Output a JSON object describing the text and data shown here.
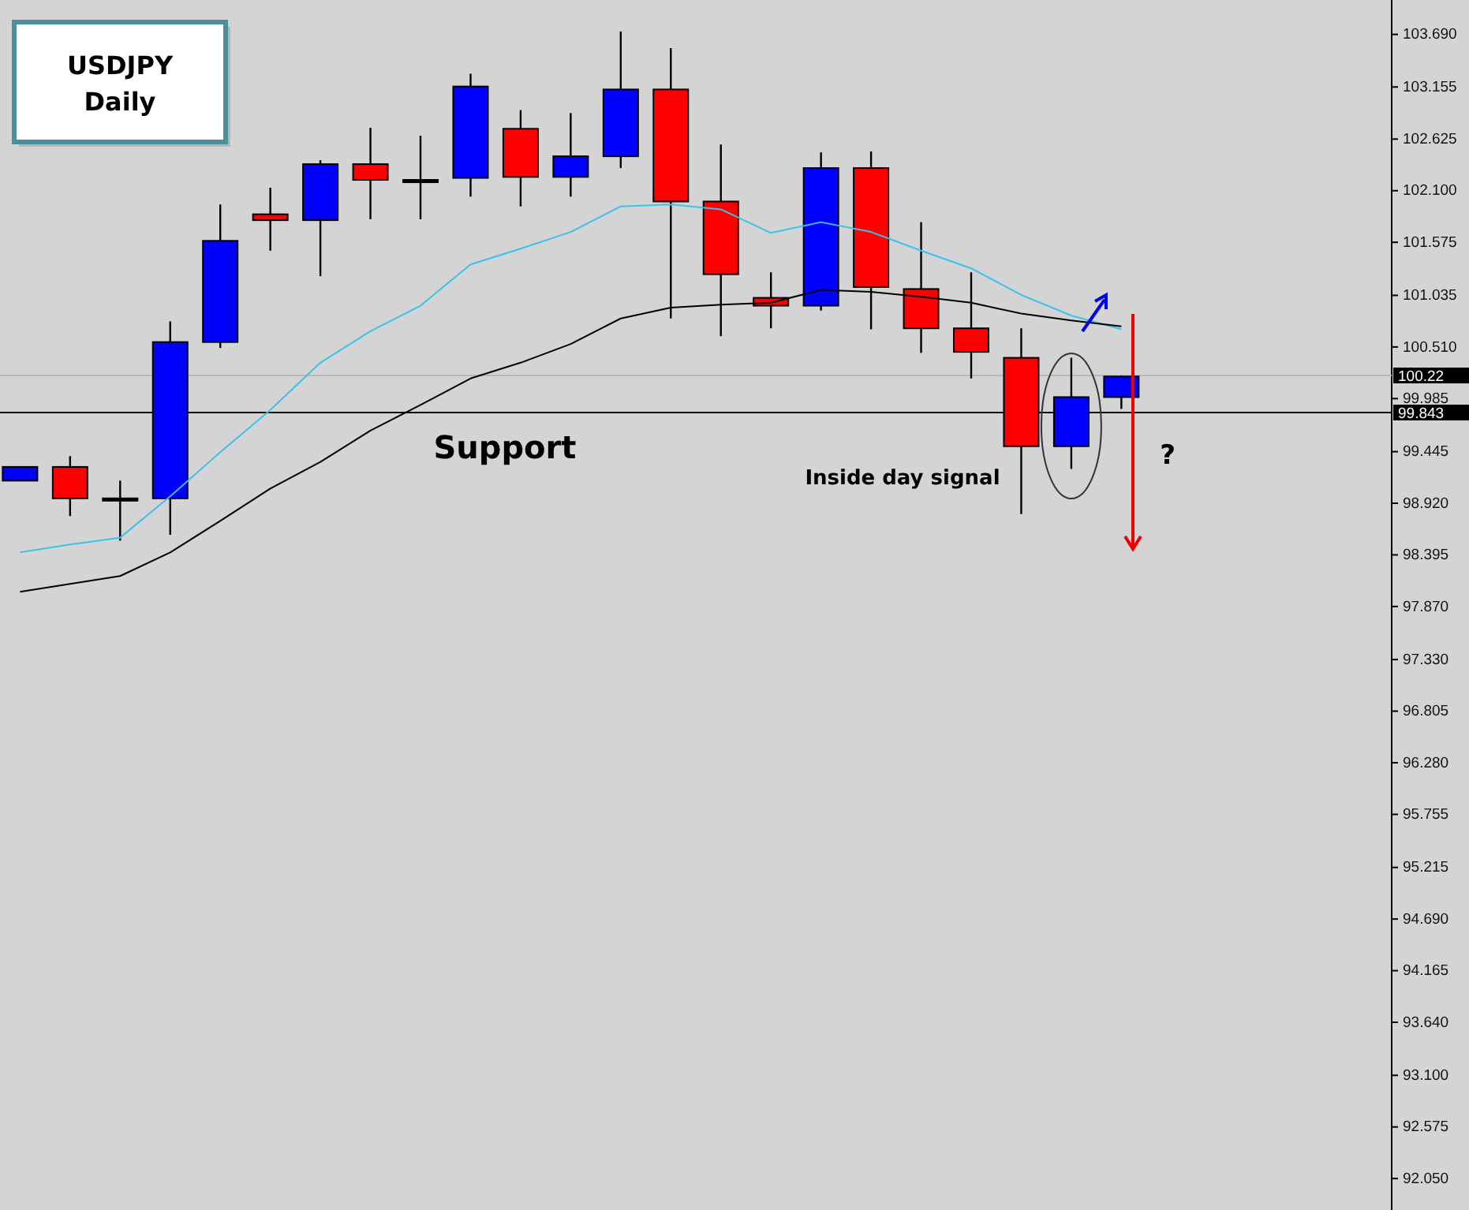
{
  "chart_data": {
    "type": "candlestick",
    "title": "USDJPY",
    "subtitle": "Daily",
    "categories": [
      null,
      null,
      null,
      null,
      null,
      null,
      null,
      null,
      null,
      null,
      null,
      null,
      null,
      null,
      null,
      null,
      null,
      null,
      null,
      null,
      null,
      null,
      null
    ],
    "ohlc": [
      [
        99.15,
        99.29,
        99.15,
        99.29
      ],
      [
        99.29,
        99.4,
        98.79,
        98.97
      ],
      [
        98.97,
        99.15,
        98.54,
        98.97
      ],
      [
        98.97,
        100.77,
        98.6,
        100.56
      ],
      [
        100.56,
        101.96,
        100.5,
        101.59
      ],
      [
        101.86,
        102.13,
        101.49,
        101.8
      ],
      [
        101.8,
        102.41,
        101.23,
        102.37
      ],
      [
        102.37,
        102.74,
        101.81,
        102.21
      ],
      [
        102.21,
        102.66,
        101.81,
        102.21
      ],
      [
        102.23,
        103.29,
        102.04,
        103.16
      ],
      [
        102.73,
        102.92,
        101.94,
        102.24
      ],
      [
        102.24,
        102.89,
        102.04,
        102.45
      ],
      [
        102.45,
        103.72,
        102.33,
        103.13
      ],
      [
        103.13,
        103.55,
        100.8,
        101.99
      ],
      [
        101.99,
        102.57,
        100.62,
        101.25
      ],
      [
        101.01,
        101.27,
        100.7,
        100.93
      ],
      [
        100.93,
        102.49,
        100.88,
        102.33
      ],
      [
        102.33,
        102.5,
        100.69,
        101.12
      ],
      [
        101.1,
        101.78,
        100.45,
        100.7
      ],
      [
        100.7,
        101.27,
        100.19,
        100.46
      ],
      [
        100.4,
        100.7,
        98.81,
        99.5
      ],
      [
        99.5,
        100.4,
        99.27,
        100.0
      ],
      [
        100.0,
        100.22,
        99.88,
        100.21
      ]
    ],
    "colors": [
      "#0000ff",
      "#ff0000",
      "#000000",
      "#0000ff",
      "#0000ff",
      "#ff0000",
      "#0000ff",
      "#ff0000",
      "#000000",
      "#0000ff",
      "#ff0000",
      "#0000ff",
      "#0000ff",
      "#ff0000",
      "#ff0000",
      "#ff0000",
      "#0000ff",
      "#ff0000",
      "#ff0000",
      "#ff0000",
      "#ff0000",
      "#0000ff",
      "#0000ff"
    ],
    "series": [
      {
        "type": "line",
        "color": "#3cc0ee",
        "values": [
          98.42,
          98.5,
          98.57,
          98.99,
          99.44,
          99.87,
          100.35,
          100.67,
          100.93,
          101.35,
          101.51,
          101.68,
          101.94,
          101.96,
          101.91,
          101.67,
          101.78,
          101.68,
          101.49,
          101.31,
          101.04,
          100.83,
          100.69
        ]
      },
      {
        "type": "line",
        "color": "#000000",
        "values": [
          98.02,
          98.1,
          98.18,
          98.42,
          98.74,
          99.07,
          99.34,
          99.66,
          99.92,
          100.19,
          100.35,
          100.54,
          100.8,
          100.91,
          100.94,
          100.96,
          101.09,
          101.07,
          101.02,
          100.96,
          100.85,
          100.78,
          100.72
        ]
      }
    ],
    "ylim": [
      91.73,
      104.04
    ],
    "yticks": [
      {
        "value": 103.69,
        "label": "103.690"
      },
      {
        "value": 103.155,
        "label": "103.155"
      },
      {
        "value": 102.625,
        "label": "102.625"
      },
      {
        "value": 102.1,
        "label": "102.100"
      },
      {
        "value": 101.575,
        "label": "101.575"
      },
      {
        "value": 101.035,
        "label": "101.035"
      },
      {
        "value": 100.51,
        "label": "100.510"
      },
      {
        "value": 99.985,
        "label": "99.985"
      },
      {
        "value": 99.445,
        "label": "99.445"
      },
      {
        "value": 98.92,
        "label": "98.920"
      },
      {
        "value": 98.395,
        "label": "98.395"
      },
      {
        "value": 97.87,
        "label": "97.870"
      },
      {
        "value": 97.33,
        "label": "97.330"
      },
      {
        "value": 96.805,
        "label": "96.805"
      },
      {
        "value": 96.28,
        "label": "96.280"
      },
      {
        "value": 95.755,
        "label": "95.755"
      },
      {
        "value": 95.215,
        "label": "95.215"
      },
      {
        "value": 94.69,
        "label": "94.690"
      },
      {
        "value": 94.165,
        "label": "94.165"
      },
      {
        "value": 93.64,
        "label": "93.640"
      },
      {
        "value": 93.1,
        "label": "93.100"
      },
      {
        "value": 92.575,
        "label": "92.575"
      },
      {
        "value": 92.05,
        "label": "92.050"
      }
    ],
    "ref_lines": [
      {
        "axis": "y",
        "value": 100.22,
        "label": "100.22",
        "color": "#b8b8b8"
      },
      {
        "axis": "y",
        "value": 99.843,
        "label": "99.843",
        "color": "#000000"
      }
    ],
    "annotations": [
      {
        "text": "Support",
        "y": 99.843
      },
      "Inside day signal",
      "?"
    ]
  }
}
